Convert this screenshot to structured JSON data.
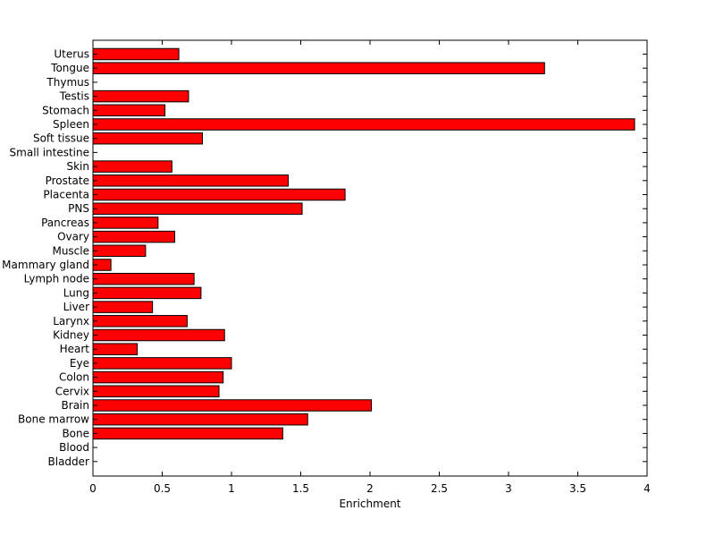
{
  "chart_data": {
    "type": "bar",
    "orientation": "horizontal",
    "categories": [
      "Uterus",
      "Tongue",
      "Thymus",
      "Testis",
      "Stomach",
      "Spleen",
      "Soft tissue",
      "Small intestine",
      "Skin",
      "Prostate",
      "Placenta",
      "PNS",
      "Pancreas",
      "Ovary",
      "Muscle",
      "Mammary gland",
      "Lymph node",
      "Lung",
      "Liver",
      "Larynx",
      "Kidney",
      "Heart",
      "Eye",
      "Colon",
      "Cervix",
      "Brain",
      "Bone marrow",
      "Bone",
      "Blood",
      "Bladder"
    ],
    "values": [
      0.62,
      3.26,
      0.0,
      0.69,
      0.52,
      3.91,
      0.79,
      0.0,
      0.57,
      1.41,
      1.82,
      1.51,
      0.47,
      0.59,
      0.38,
      0.13,
      0.73,
      0.78,
      0.43,
      0.68,
      0.95,
      0.32,
      1.0,
      0.94,
      0.91,
      2.01,
      1.55,
      1.37,
      0.0,
      0.0
    ],
    "title": "",
    "xlabel": "Enrichment",
    "ylabel": "",
    "xlim": [
      0,
      4
    ],
    "xticks": [
      "0",
      "0.5",
      "1",
      "1.5",
      "2",
      "2.5",
      "3",
      "3.5",
      "4"
    ],
    "bar_color": "#ff0000",
    "edge_color": "#000000",
    "grid": false
  }
}
